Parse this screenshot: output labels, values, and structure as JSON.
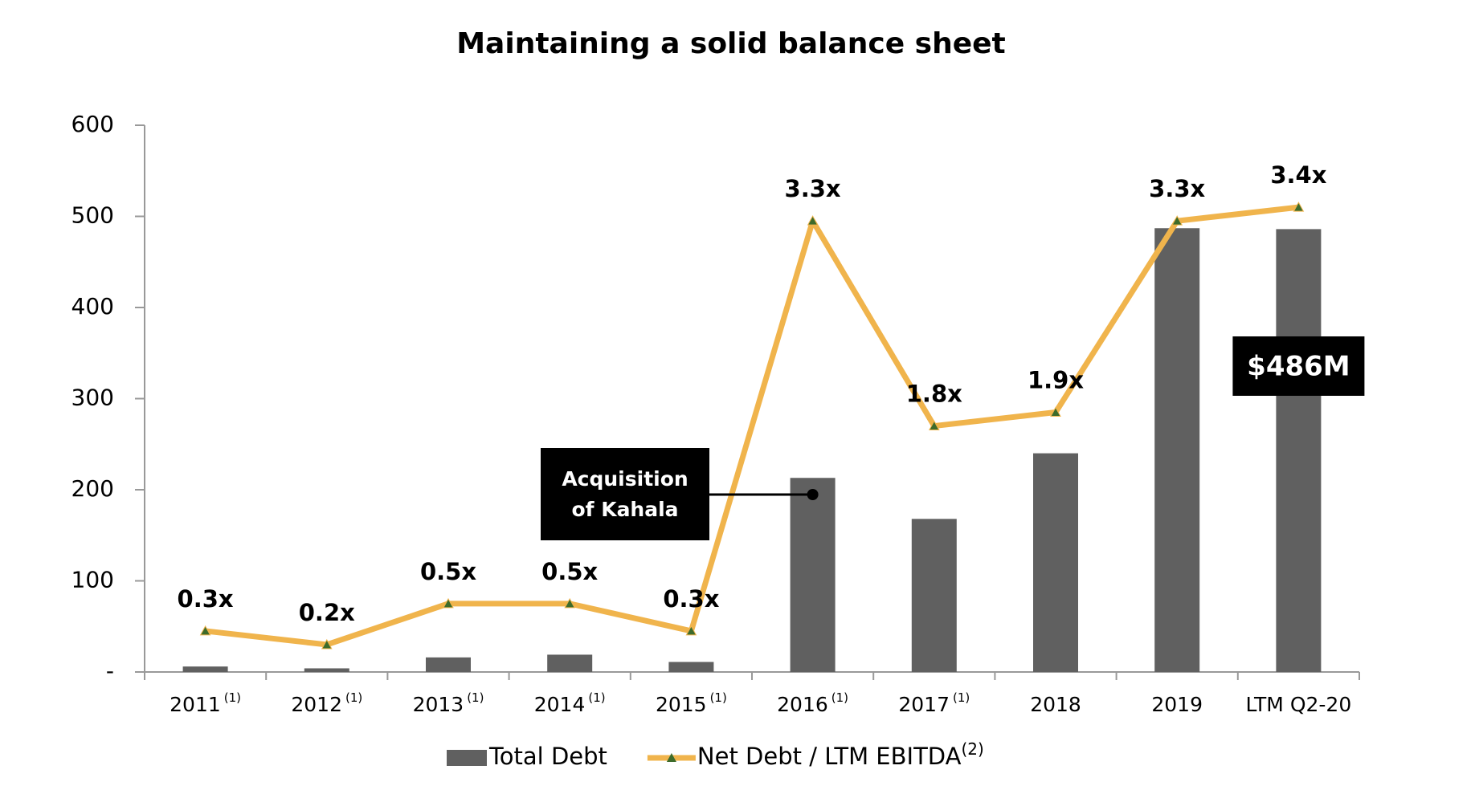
{
  "chart_data": {
    "type": "bar-line",
    "title": "Maintaining a solid balance sheet",
    "categories": [
      "2011",
      "2012",
      "2013",
      "2014",
      "2015",
      "2016",
      "2017",
      "2018",
      "2019",
      "LTM Q2-20"
    ],
    "category_notes": [
      "(1)",
      "(1)",
      "(1)",
      "(1)",
      "(1)",
      "(1)",
      "(1)",
      null,
      null,
      null
    ],
    "series": [
      {
        "name": "Total Debt",
        "type": "bar",
        "color": "#606060",
        "values": [
          6,
          4,
          16,
          19,
          11,
          213,
          168,
          240,
          487,
          486
        ],
        "value_labels": [
          null,
          null,
          null,
          null,
          null,
          null,
          null,
          null,
          null,
          "$486M"
        ]
      },
      {
        "name": "Net Debt / LTM EBITDA",
        "name_note": "(2)",
        "type": "line",
        "axis": "y2",
        "color": "#F0B44C",
        "marker_color": "#3d6b2b",
        "values": [
          0.3,
          0.2,
          0.5,
          0.5,
          0.3,
          3.3,
          1.8,
          1.9,
          3.3,
          3.4
        ],
        "value_labels": [
          "0.3x",
          "0.2x",
          "0.5x",
          "0.5x",
          "0.3x",
          "3.3x",
          "1.8x",
          "1.9x",
          "3.3x",
          "3.4x"
        ]
      }
    ],
    "ylim": [
      0,
      600
    ],
    "yticks": [
      {
        "value": 0,
        "label": "-"
      },
      100,
      200,
      300,
      400,
      500,
      600
    ],
    "y2lim": [
      0,
      4
    ],
    "grid": false,
    "legend": "bottom",
    "annotations": [
      {
        "text": [
          "Acquisition",
          "of Kahala"
        ]
      }
    ]
  }
}
